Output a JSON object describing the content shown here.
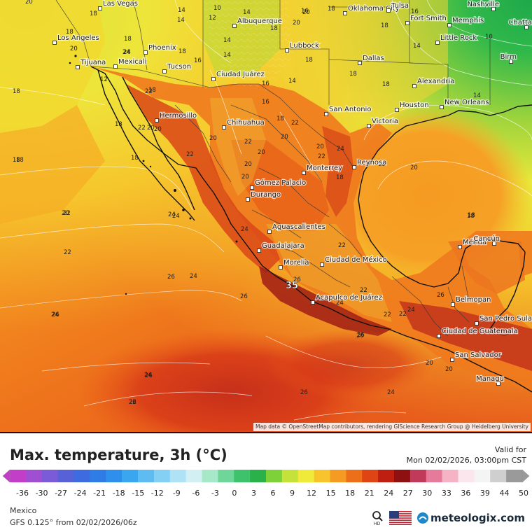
{
  "map": {
    "attribution": "Map data © OpenStreetMap contributors, rendering GIScience Research Group @ Heidelberg University",
    "peak_value": "35",
    "cities": [
      {
        "name": "Las Vegas"
      },
      {
        "name": "Albuquerque"
      },
      {
        "name": "Oklahoma City"
      },
      {
        "name": "Tulsa"
      },
      {
        "name": "Fort Smith"
      },
      {
        "name": "Memphis"
      },
      {
        "name": "Nashville"
      },
      {
        "name": "Chatta"
      },
      {
        "name": "Los Angeles"
      },
      {
        "name": "Phoenix"
      },
      {
        "name": "Tijuana"
      },
      {
        "name": "Mexicali"
      },
      {
        "name": "Tucson"
      },
      {
        "name": "Lubbock"
      },
      {
        "name": "Little Rock"
      },
      {
        "name": "Dallas"
      },
      {
        "name": "Birm"
      },
      {
        "name": "Ciudad Juárez"
      },
      {
        "name": "Alexandria"
      },
      {
        "name": "Hermosillo"
      },
      {
        "name": "Chihuahua"
      },
      {
        "name": "San Antonio"
      },
      {
        "name": "Houston"
      },
      {
        "name": "New Orleans"
      },
      {
        "name": "Victoria"
      },
      {
        "name": "Monterrey"
      },
      {
        "name": "Reynosa"
      },
      {
        "name": "Gómez Palacio"
      },
      {
        "name": "Durango"
      },
      {
        "name": "Aguascalientes"
      },
      {
        "name": "Guadalajara"
      },
      {
        "name": "Mérida"
      },
      {
        "name": "Cancún"
      },
      {
        "name": "Morelia"
      },
      {
        "name": "Ciudad de México"
      },
      {
        "name": "Acapulco de Juárez"
      },
      {
        "name": "Belmopan"
      },
      {
        "name": "San Pedro Sula"
      },
      {
        "name": "Ciudad de Guatemala"
      },
      {
        "name": "San Salvador"
      },
      {
        "name": "Managu"
      }
    ],
    "isotherm_labels": [
      "20",
      "18",
      "14",
      "10",
      "12",
      "14",
      "18",
      "20",
      "18",
      "14",
      "16",
      "18",
      "14",
      "10",
      "18",
      "14",
      "24",
      "16",
      "18",
      "18",
      "16",
      "20",
      "18",
      "14",
      "18",
      "12",
      "16",
      "18",
      "14",
      "18",
      "20",
      "18",
      "14",
      "16",
      "22",
      "18",
      "20",
      "18",
      "18",
      "20",
      "24",
      "22",
      "20",
      "24",
      "20",
      "22",
      "22",
      "20",
      "18",
      "22",
      "20",
      "20",
      "20",
      "22",
      "24",
      "22",
      "18",
      "20",
      "22",
      "24",
      "26",
      "26",
      "24",
      "22",
      "22",
      "26",
      "24",
      "22",
      "20",
      "20",
      "18",
      "18",
      "22",
      "24",
      "22",
      "24",
      "26",
      "26",
      "24",
      "26",
      "24",
      "26",
      "26",
      "26",
      "18",
      "18",
      "20",
      "24",
      "26"
    ]
  },
  "header": {
    "title": "Max. temperature, 3h (°C)",
    "valid_label": "Valid for",
    "valid_time": "Mon 02/02/2026, 03:00pm CST"
  },
  "legend": {
    "ticks": [
      "-36",
      "-30",
      "-27",
      "-24",
      "-21",
      "-18",
      "-15",
      "-12",
      "-9",
      "-6",
      "-3",
      "0",
      "3",
      "6",
      "9",
      "12",
      "15",
      "18",
      "21",
      "24",
      "27",
      "30",
      "33",
      "36",
      "39",
      "44",
      "50"
    ],
    "colors": [
      "#c23ec8",
      "#a04fd2",
      "#7c5bd8",
      "#5862d8",
      "#3e6be0",
      "#2f7ce6",
      "#2e90ec",
      "#3aa6f0",
      "#5ebcf2",
      "#84d0f4",
      "#b0e2f5",
      "#d2f0f4",
      "#a6e8c8",
      "#6fd69a",
      "#3ec26c",
      "#2bb14a",
      "#7fd13a",
      "#c4e23a",
      "#f0ea3a",
      "#f7c42e",
      "#f59a22",
      "#ee6f1a",
      "#df4415",
      "#bf1f10",
      "#8e1010",
      "#c23a5a",
      "#e67a9a",
      "#f4b4c6",
      "#fce6ee",
      "#f4f4f4",
      "#cfcfcf",
      "#9a9a9a"
    ]
  },
  "footer": {
    "region": "Mexico",
    "model": "GFS 0.125° from  02/02/2026/06z",
    "hd_label": "HD",
    "brand": "meteologix.com"
  }
}
